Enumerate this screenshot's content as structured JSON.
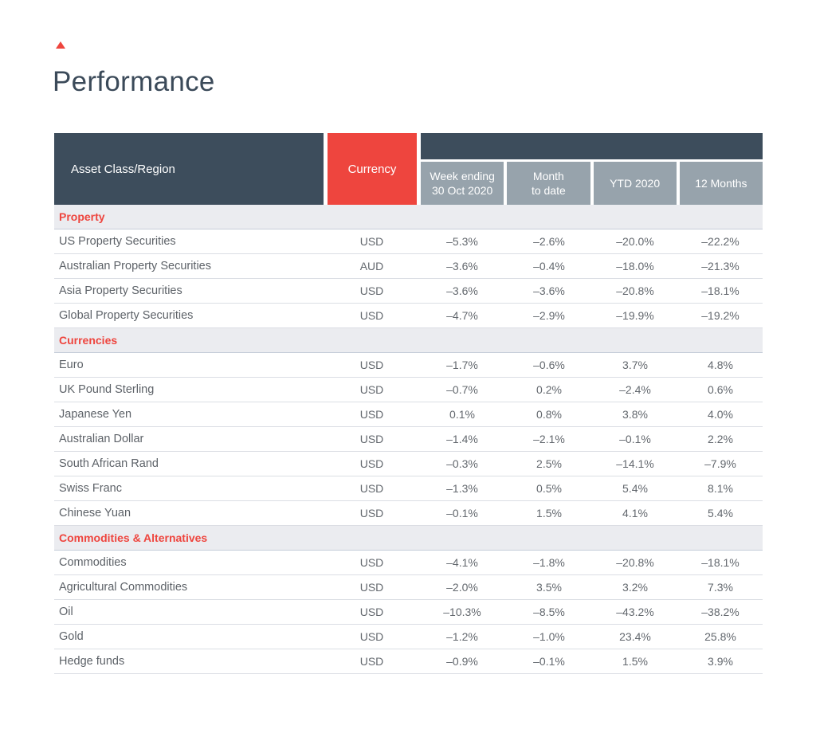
{
  "colors": {
    "accent_red": "#ee453e",
    "header_dark": "#3d4d5c",
    "header_gray": "#97a3ac",
    "section_bg": "#ebecf0"
  },
  "page_title": "Performance",
  "table": {
    "header": {
      "asset_class": "Asset Class/Region",
      "currency": "Currency",
      "periods": [
        "Week ending\n30 Oct 2020",
        "Month\nto date",
        "YTD 2020",
        "12 Months"
      ]
    },
    "sections": [
      {
        "label": "Property",
        "rows": [
          {
            "name": "US Property Securities",
            "currency": "USD",
            "values": [
              "–5.3%",
              "–2.6%",
              "–20.0%",
              "–22.2%"
            ]
          },
          {
            "name": "Australian Property Securities",
            "currency": "AUD",
            "values": [
              "–3.6%",
              "–0.4%",
              "–18.0%",
              "–21.3%"
            ]
          },
          {
            "name": "Asia Property Securities",
            "currency": "USD",
            "values": [
              "–3.6%",
              "–3.6%",
              "–20.8%",
              "–18.1%"
            ]
          },
          {
            "name": "Global Property Securities",
            "currency": "USD",
            "values": [
              "–4.7%",
              "–2.9%",
              "–19.9%",
              "–19.2%"
            ]
          }
        ]
      },
      {
        "label": "Currencies",
        "rows": [
          {
            "name": "Euro",
            "currency": "USD",
            "values": [
              "–1.7%",
              "–0.6%",
              "3.7%",
              "4.8%"
            ]
          },
          {
            "name": "UK Pound Sterling",
            "currency": "USD",
            "values": [
              "–0.7%",
              "0.2%",
              "–2.4%",
              "0.6%"
            ]
          },
          {
            "name": "Japanese Yen",
            "currency": "USD",
            "values": [
              "0.1%",
              "0.8%",
              "3.8%",
              "4.0%"
            ]
          },
          {
            "name": "Australian Dollar",
            "currency": "USD",
            "values": [
              "–1.4%",
              "–2.1%",
              "–0.1%",
              "2.2%"
            ]
          },
          {
            "name": "South African Rand",
            "currency": "USD",
            "values": [
              "–0.3%",
              "2.5%",
              "–14.1%",
              "–7.9%"
            ]
          },
          {
            "name": "Swiss Franc",
            "currency": "USD",
            "values": [
              "–1.3%",
              "0.5%",
              "5.4%",
              "8.1%"
            ]
          },
          {
            "name": "Chinese Yuan",
            "currency": "USD",
            "values": [
              "–0.1%",
              "1.5%",
              "4.1%",
              "5.4%"
            ]
          }
        ]
      },
      {
        "label": "Commodities & Alternatives",
        "rows": [
          {
            "name": "Commodities",
            "currency": "USD",
            "values": [
              "–4.1%",
              "–1.8%",
              "–20.8%",
              "–18.1%"
            ]
          },
          {
            "name": "Agricultural Commodities",
            "currency": "USD",
            "values": [
              "–2.0%",
              "3.5%",
              "3.2%",
              "7.3%"
            ]
          },
          {
            "name": "Oil",
            "currency": "USD",
            "values": [
              "–10.3%",
              "–8.5%",
              "–43.2%",
              "–38.2%"
            ]
          },
          {
            "name": "Gold",
            "currency": "USD",
            "values": [
              "–1.2%",
              "–1.0%",
              "23.4%",
              "25.8%"
            ]
          },
          {
            "name": "Hedge funds",
            "currency": "USD",
            "values": [
              "–0.9%",
              "–0.1%",
              "1.5%",
              "3.9%"
            ]
          }
        ]
      }
    ]
  }
}
